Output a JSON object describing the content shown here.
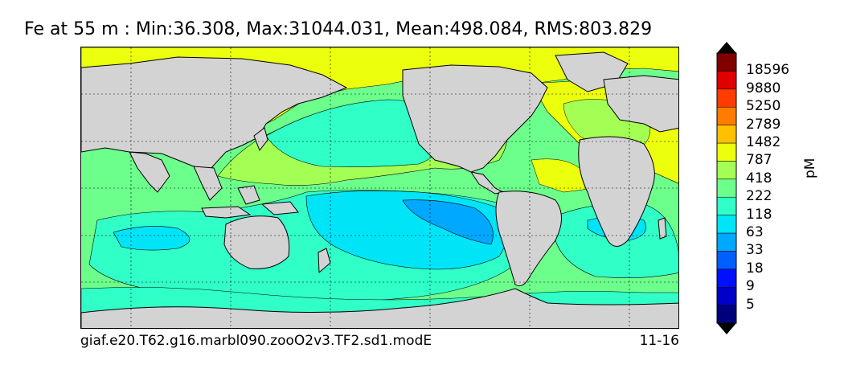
{
  "title": "Fe at 55 m : Min:36.308, Max:31044.031, Mean:498.084, RMS:803.829",
  "case_name": "giaf.e20.T62.g16.marbl090.zooO2v3.TF2.sd1.modE",
  "date": "11-16",
  "colorbar": {
    "units": "pM",
    "levels": [
      "5",
      "9",
      "18",
      "33",
      "63",
      "118",
      "222",
      "418",
      "787",
      "1482",
      "2789",
      "5250",
      "9880",
      "18596"
    ],
    "colors": [
      "#00007f",
      "#0000c8",
      "#0010ff",
      "#0060ff",
      "#00a8ff",
      "#00e4f8",
      "#30ffc8",
      "#6cff8c",
      "#a4ff54",
      "#ecff0c",
      "#ffc000",
      "#ff7c00",
      "#ff3c00",
      "#e00000",
      "#800000"
    ]
  },
  "map": {
    "land_color": "#d3d3d3",
    "background_field_color": "#6cff8c",
    "regions": [
      {
        "name": "arctic-high-fe",
        "color": "#ecff0c"
      },
      {
        "name": "north-pacific-moderate-fe",
        "color": "#a4ff54"
      },
      {
        "name": "equatorial-pacific-low-fe",
        "color": "#30ffc8"
      },
      {
        "name": "pacific-very-low-fe",
        "color": "#00e4f8"
      },
      {
        "name": "pacific-minimum-fe",
        "color": "#00a8ff"
      },
      {
        "name": "north-atlantic-high-fe",
        "color": "#ecff0c"
      },
      {
        "name": "southern-ocean-low-fe",
        "color": "#30ffc8"
      },
      {
        "name": "south-atlantic-low-fe",
        "color": "#00e4f8"
      }
    ]
  }
}
